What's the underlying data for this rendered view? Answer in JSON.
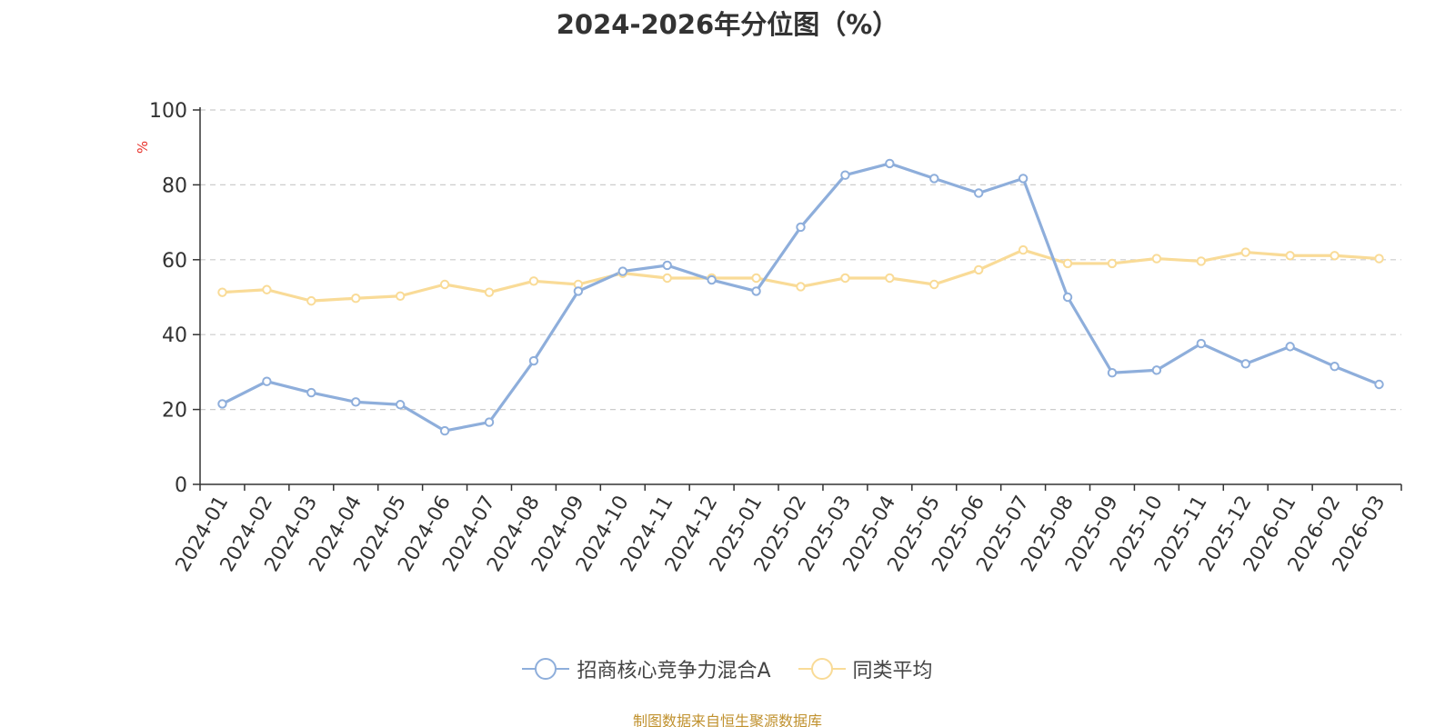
{
  "chart_data": {
    "type": "line",
    "title": "2024-2026年分位图（%）",
    "ylabel": "%",
    "xlabel": "",
    "ylim": [
      0,
      100
    ],
    "yticks": [
      0,
      20,
      40,
      60,
      80,
      100
    ],
    "grid": true,
    "legend_position": "bottom-center",
    "categories": [
      "2024-01",
      "2024-02",
      "2024-03",
      "2024-04",
      "2024-05",
      "2024-06",
      "2024-07",
      "2024-08",
      "2024-09",
      "2024-10",
      "2024-11",
      "2024-12",
      "2025-01",
      "2025-02",
      "2025-03",
      "2025-04",
      "2025-05",
      "2025-06",
      "2025-07",
      "2025-08",
      "2025-09",
      "2025-10",
      "2025-11",
      "2025-12",
      "2026-01",
      "2026-02",
      "2026-03"
    ],
    "series": [
      {
        "name": "招商核心竞争力混合A",
        "color": "#8eaedb",
        "values": [
          21.5,
          27.5,
          24.5,
          22.0,
          21.3,
          14.3,
          16.6,
          33.0,
          51.6,
          56.9,
          58.5,
          54.6,
          51.6,
          68.7,
          82.6,
          85.7,
          81.7,
          77.8,
          81.7,
          50.0,
          29.8,
          30.5,
          37.6,
          32.2,
          36.8,
          31.5,
          26.7
        ]
      },
      {
        "name": "同类平均",
        "color": "#f9db97",
        "values": [
          51.3,
          52.0,
          49.0,
          49.7,
          50.3,
          53.4,
          51.3,
          54.3,
          53.4,
          56.4,
          55.1,
          55.1,
          55.1,
          52.8,
          55.1,
          55.1,
          53.4,
          57.3,
          62.6,
          59.0,
          59.0,
          60.3,
          59.6,
          62.0,
          61.1,
          61.1,
          60.3
        ]
      }
    ]
  },
  "footer": {
    "source": "制图数据来自恒生聚源数据库"
  }
}
